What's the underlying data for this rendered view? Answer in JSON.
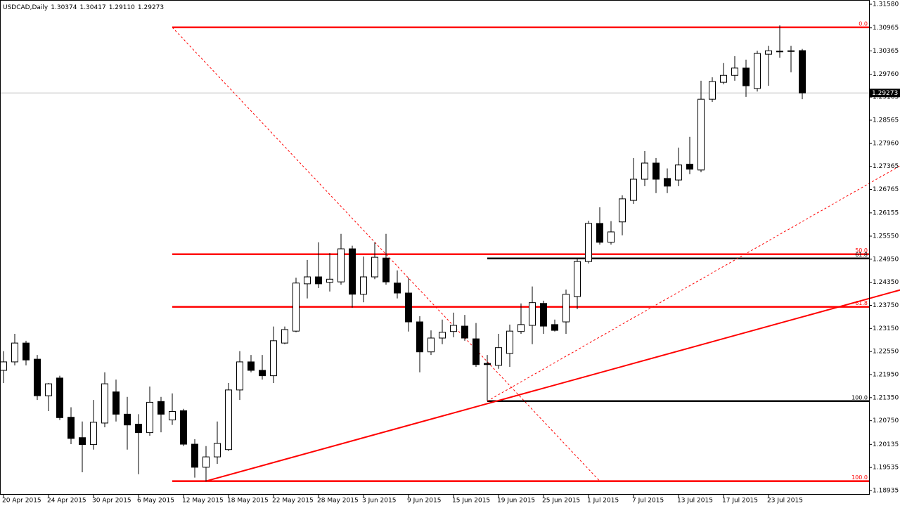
{
  "chart_data": {
    "type": "candlestick",
    "title": "USDCAD,Daily",
    "header_values": [
      1.30374,
      1.30417,
      1.2911,
      1.29273
    ],
    "header_labels": [
      "1.30374",
      "1.30417",
      "1.29110",
      "1.29273"
    ],
    "categories": [
      "20 Apr 2015",
      null,
      null,
      null,
      "24 Apr 2015",
      null,
      null,
      null,
      "30 Apr 2015",
      null,
      null,
      null,
      "6 May 2015",
      null,
      null,
      null,
      "12 May 2015",
      null,
      null,
      null,
      "18 May 2015",
      null,
      null,
      null,
      "22 May 2015",
      null,
      null,
      null,
      "28 May 2015",
      null,
      null,
      null,
      "3 Jun 2015",
      null,
      null,
      null,
      "9 Jun 2015",
      null,
      null,
      null,
      "15 Jun 2015",
      null,
      null,
      null,
      "19 Jun 2015",
      null,
      null,
      null,
      "25 Jun 2015",
      null,
      null,
      null,
      "1 Jul 2015",
      null,
      null,
      null,
      "7 Jul 2015",
      null,
      null,
      null,
      "13 Jul 2015",
      null,
      null,
      null,
      "17 Jul 2015",
      null,
      null,
      null,
      "23 Jul 2015",
      null,
      null,
      null
    ],
    "open": [
      1.2206,
      1.2228,
      1.2277,
      1.2235,
      1.214,
      1.2186,
      1.2084,
      1.2031,
      1.2013,
      1.2069,
      1.215,
      1.2092,
      1.2066,
      1.2044,
      1.2125,
      1.2077,
      1.2101,
      1.2014,
      1.1954,
      1.1981,
      1.2,
      1.2155,
      1.2228,
      1.2206,
      1.2192,
      1.2277,
      1.2308,
      1.2431,
      1.2449,
      1.2435,
      1.2436,
      1.2522,
      1.2404,
      1.2449,
      1.2498,
      1.2433,
      1.2407,
      1.2332,
      1.2254,
      1.229,
      1.2307,
      1.2321,
      1.2288,
      1.2224,
      1.2219,
      1.225,
      1.2307,
      1.2323,
      1.238,
      1.2325,
      1.2332,
      1.2398,
      1.2489,
      1.2588,
      1.2539,
      1.2592,
      1.2648,
      1.2703,
      1.2745,
      1.2705,
      1.2701,
      1.2742,
      1.2727,
      1.2911,
      1.2955,
      1.2973,
      1.2992,
      1.2939,
      1.3028,
      1.3036,
      1.3037,
      1.30374
    ],
    "high": [
      1.2256,
      1.2301,
      1.2283,
      1.2246,
      1.2173,
      1.2192,
      1.211,
      1.2073,
      1.2129,
      1.2201,
      1.2182,
      1.2137,
      1.2092,
      1.2164,
      1.2137,
      1.2146,
      1.2106,
      1.2027,
      1.2009,
      1.2073,
      1.2173,
      1.2256,
      1.2246,
      1.2246,
      1.232,
      1.232,
      1.2447,
      1.2493,
      1.2539,
      1.2511,
      1.2561,
      1.253,
      1.2502,
      1.2539,
      1.2561,
      1.2466,
      1.2447,
      1.2347,
      1.231,
      1.2338,
      1.2356,
      1.235,
      1.2329,
      1.2246,
      1.2301,
      1.2325,
      1.238,
      1.2424,
      1.2387,
      1.2338,
      1.2416,
      1.2497,
      1.2595,
      1.263,
      1.2594,
      1.2661,
      1.2758,
      1.2776,
      1.2758,
      1.2731,
      1.2785,
      1.2813,
      1.2959,
      1.2968,
      1.3005,
      1.3023,
      1.3014,
      1.3037,
      1.305,
      1.3103,
      1.305,
      1.30417
    ],
    "low": [
      1.2173,
      1.2219,
      1.2219,
      1.2129,
      1.21,
      1.2077,
      1.2014,
      1.1941,
      1.2,
      1.2058,
      1.2073,
      1.2,
      1.1936,
      1.2036,
      1.2045,
      1.2064,
      1.2009,
      1.1927,
      1.1917,
      1.1963,
      1.1996,
      1.2129,
      1.2201,
      1.2182,
      1.2173,
      1.2274,
      1.2305,
      1.2393,
      1.242,
      1.2411,
      1.2429,
      1.2369,
      1.2383,
      1.2443,
      1.2429,
      1.2393,
      1.2307,
      1.2201,
      1.2246,
      1.2274,
      1.2292,
      1.2283,
      1.2215,
      1.2127,
      1.221,
      1.2215,
      1.2301,
      1.2274,
      1.2301,
      1.2307,
      1.2301,
      1.2365,
      1.2484,
      1.2533,
      1.2533,
      1.2557,
      1.2639,
      1.2685,
      1.2667,
      1.2667,
      1.2685,
      1.2716,
      1.2721,
      1.2904,
      1.295,
      1.2959,
      1.2917,
      1.2931,
      1.2946,
      1.3019,
      1.2981,
      1.2911
    ],
    "close": [
      1.2228,
      1.2277,
      1.2233,
      1.214,
      1.2171,
      1.2083,
      1.2029,
      1.2013,
      1.2071,
      1.2171,
      1.2092,
      1.2064,
      1.2044,
      1.2123,
      1.2092,
      1.2099,
      1.2014,
      1.1954,
      1.1981,
      1.2016,
      1.2155,
      1.2228,
      1.2206,
      1.2192,
      1.2283,
      1.2312,
      1.2433,
      1.2449,
      1.2431,
      1.2443,
      1.2522,
      1.2404,
      1.2449,
      1.25,
      1.2436,
      1.2407,
      1.2332,
      1.2254,
      1.229,
      1.2305,
      1.2323,
      1.229,
      1.2221,
      1.2221,
      1.2265,
      1.2308,
      1.2325,
      1.2382,
      1.2321,
      1.231,
      1.2404,
      1.2489,
      1.2588,
      1.2539,
      1.2566,
      1.2652,
      1.2703,
      1.2745,
      1.2703,
      1.2685,
      1.274,
      1.2729,
      1.2911,
      1.2957,
      1.2973,
      1.2992,
      1.2946,
      1.303,
      1.3037,
      1.3036,
      1.3037,
      1.29273
    ],
    "ylim": [
      1.18825,
      1.3169
    ],
    "yticks": [
      {
        "value": 1.3158,
        "label": "1.31580"
      },
      {
        "value": 1.30965,
        "label": "1.30965"
      },
      {
        "value": 1.30365,
        "label": "1.30365"
      },
      {
        "value": 1.2976,
        "label": "1.29760"
      },
      {
        "value": 1.29165,
        "label": "1.29165"
      },
      {
        "value": 1.28565,
        "label": "1.28565"
      },
      {
        "value": 1.2796,
        "label": "1.27960"
      },
      {
        "value": 1.27365,
        "label": "1.27365"
      },
      {
        "value": 1.26765,
        "label": "1.26765"
      },
      {
        "value": 1.26155,
        "label": "1.26155"
      },
      {
        "value": 1.2555,
        "label": "1.25550"
      },
      {
        "value": 1.2495,
        "label": "1.24950"
      },
      {
        "value": 1.2435,
        "label": "1.24350"
      },
      {
        "value": 1.2375,
        "label": "1.23750"
      },
      {
        "value": 1.2315,
        "label": "1.23150"
      },
      {
        "value": 1.2255,
        "label": "1.22550"
      },
      {
        "value": 1.2195,
        "label": "1.21950"
      },
      {
        "value": 1.2135,
        "label": "1.21350"
      },
      {
        "value": 1.2075,
        "label": "1.20750"
      },
      {
        "value": 1.20135,
        "label": "1.20135"
      },
      {
        "value": 1.19535,
        "label": "1.19535"
      },
      {
        "value": 1.18935,
        "label": "1.18935"
      }
    ],
    "levels": [
      {
        "label": "0.0",
        "value": 1.3098,
        "start": 15,
        "color": "#ff0000"
      },
      {
        "label": "50.0",
        "value": 1.2508,
        "start": 15,
        "color": "#ff0000"
      },
      {
        "label": "61.8",
        "value": 1.2371,
        "start": 15,
        "color": "#ff0000"
      },
      {
        "label": "100.0",
        "value": 1.1918,
        "start": 15,
        "color": "#ff0000"
      },
      {
        "label": "61.8",
        "value": 1.2497,
        "start": 43,
        "color": "#000000"
      },
      {
        "label": "100.0",
        "value": 1.2126,
        "start": 43,
        "color": "#000000"
      }
    ],
    "trendlines": [
      {
        "x": [
          15,
          53
        ],
        "y": [
          1.3098,
          1.1918
        ],
        "color": "#ff0000",
        "style": "dashed"
      },
      {
        "x": [
          18,
          79.7
        ],
        "y": [
          1.1918,
          1.2415
        ],
        "color": "#ff0000",
        "style": "solid"
      },
      {
        "x": [
          43,
          79.7
        ],
        "y": [
          1.2126,
          1.2738
        ],
        "color": "#ff0000",
        "style": "dashed"
      }
    ]
  }
}
